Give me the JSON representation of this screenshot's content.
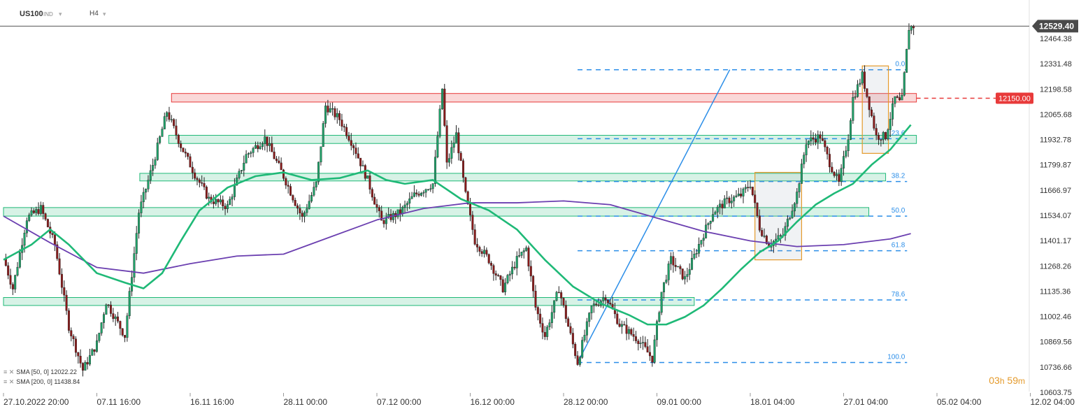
{
  "header": {
    "symbol": "US100",
    "market": "IND",
    "timeframe": "H4"
  },
  "timer": {
    "hours": "03",
    "h_unit": "h",
    "minutes": "59",
    "m_unit": "m"
  },
  "legend": [
    {
      "label": "SMA  [50, 0]  12022.22",
      "color": "#1fb977"
    },
    {
      "label": "SMA  [200, 0]  11438.84",
      "color": "#6b3fb0"
    }
  ],
  "colors": {
    "up": "#1fa36a",
    "down": "#8a1a1a",
    "sma50": "#1fb977",
    "sma200": "#6b3fb0",
    "fib": "#2b8ee8",
    "resistance": "#e83a3a",
    "zone": "#1fb977",
    "box": "#e49a2b"
  },
  "chart_data": {
    "type": "candlestick",
    "instrument": "US100",
    "timeframe": "H4",
    "y_ticks": [
      12464.38,
      12331.48,
      12198.58,
      12065.68,
      11932.78,
      11799.87,
      11666.97,
      11534.07,
      11401.17,
      11268.26,
      11135.36,
      11002.46,
      10869.56,
      10736.66,
      10603.75
    ],
    "x_ticks": [
      "27.10.2022  20:00",
      "07.11  16:00",
      "16.11  16:00",
      "28.11  00:00",
      "07.12  00:00",
      "16.12  00:00",
      "28.12  00:00",
      "09.01  00:00",
      "18.01  04:00",
      "27.01  04:00",
      "05.02  04:00",
      "12.02  04:00"
    ],
    "x_range": [
      0,
      11
    ],
    "last_price": "12529.40",
    "last_price_value": 12529.4,
    "ylim": [
      10603.75,
      12560
    ],
    "price_path": [
      [
        0.0,
        11310
      ],
      [
        0.1,
        11150
      ],
      [
        0.25,
        11520
      ],
      [
        0.4,
        11570
      ],
      [
        0.55,
        11380
      ],
      [
        0.7,
        10950
      ],
      [
        0.85,
        10720
      ],
      [
        1.0,
        10860
      ],
      [
        1.1,
        11080
      ],
      [
        1.3,
        10900
      ],
      [
        1.45,
        11550
      ],
      [
        1.6,
        11800
      ],
      [
        1.75,
        12080
      ],
      [
        1.9,
        11900
      ],
      [
        2.05,
        11750
      ],
      [
        2.2,
        11620
      ],
      [
        2.4,
        11580
      ],
      [
        2.6,
        11850
      ],
      [
        2.8,
        11940
      ],
      [
        3.0,
        11740
      ],
      [
        3.2,
        11520
      ],
      [
        3.35,
        11700
      ],
      [
        3.45,
        12110
      ],
      [
        3.6,
        12040
      ],
      [
        3.75,
        11900
      ],
      [
        3.9,
        11720
      ],
      [
        4.05,
        11500
      ],
      [
        4.25,
        11550
      ],
      [
        4.4,
        11640
      ],
      [
        4.6,
        11700
      ],
      [
        4.7,
        12200
      ],
      [
        4.75,
        11800
      ],
      [
        4.85,
        11960
      ],
      [
        4.95,
        11640
      ],
      [
        5.05,
        11400
      ],
      [
        5.2,
        11300
      ],
      [
        5.35,
        11150
      ],
      [
        5.5,
        11300
      ],
      [
        5.6,
        11360
      ],
      [
        5.7,
        11050
      ],
      [
        5.8,
        10900
      ],
      [
        5.95,
        11150
      ],
      [
        6.05,
        10950
      ],
      [
        6.15,
        10760
      ],
      [
        6.3,
        11050
      ],
      [
        6.45,
        11110
      ],
      [
        6.6,
        10960
      ],
      [
        6.8,
        10880
      ],
      [
        6.95,
        10780
      ],
      [
        7.05,
        11130
      ],
      [
        7.15,
        11300
      ],
      [
        7.3,
        11200
      ],
      [
        7.45,
        11380
      ],
      [
        7.6,
        11550
      ],
      [
        7.75,
        11610
      ],
      [
        7.9,
        11640
      ],
      [
        8.0,
        11700
      ],
      [
        8.1,
        11470
      ],
      [
        8.2,
        11380
      ],
      [
        8.35,
        11430
      ],
      [
        8.5,
        11650
      ],
      [
        8.6,
        11920
      ],
      [
        8.75,
        11950
      ],
      [
        8.85,
        11810
      ],
      [
        8.95,
        11700
      ],
      [
        9.05,
        11950
      ],
      [
        9.1,
        12150
      ],
      [
        9.2,
        12270
      ],
      [
        9.35,
        11950
      ],
      [
        9.45,
        11950
      ],
      [
        9.55,
        12150
      ],
      [
        9.62,
        12120
      ],
      [
        9.7,
        12520
      ],
      [
        9.75,
        12530
      ]
    ],
    "sma50": [
      [
        0.0,
        11300
      ],
      [
        0.3,
        11380
      ],
      [
        0.5,
        11460
      ],
      [
        0.7,
        11380
      ],
      [
        1.0,
        11230
      ],
      [
        1.3,
        11180
      ],
      [
        1.5,
        11150
      ],
      [
        1.7,
        11230
      ],
      [
        1.9,
        11400
      ],
      [
        2.1,
        11560
      ],
      [
        2.4,
        11680
      ],
      [
        2.7,
        11740
      ],
      [
        3.0,
        11760
      ],
      [
        3.3,
        11720
      ],
      [
        3.6,
        11730
      ],
      [
        3.9,
        11770
      ],
      [
        4.1,
        11720
      ],
      [
        4.3,
        11700
      ],
      [
        4.6,
        11720
      ],
      [
        4.9,
        11620
      ],
      [
        5.2,
        11560
      ],
      [
        5.5,
        11460
      ],
      [
        5.8,
        11300
      ],
      [
        6.1,
        11160
      ],
      [
        6.4,
        11070
      ],
      [
        6.7,
        11010
      ],
      [
        6.9,
        10960
      ],
      [
        7.1,
        10960
      ],
      [
        7.3,
        11000
      ],
      [
        7.5,
        11060
      ],
      [
        7.7,
        11150
      ],
      [
        7.9,
        11250
      ],
      [
        8.1,
        11340
      ],
      [
        8.3,
        11400
      ],
      [
        8.5,
        11500
      ],
      [
        8.7,
        11590
      ],
      [
        8.9,
        11650
      ],
      [
        9.1,
        11700
      ],
      [
        9.3,
        11800
      ],
      [
        9.5,
        11880
      ],
      [
        9.72,
        12010
      ]
    ],
    "sma200": [
      [
        0.0,
        11530
      ],
      [
        0.5,
        11390
      ],
      [
        1.0,
        11260
      ],
      [
        1.5,
        11230
      ],
      [
        2.0,
        11280
      ],
      [
        2.5,
        11320
      ],
      [
        3.0,
        11330
      ],
      [
        3.5,
        11420
      ],
      [
        4.0,
        11510
      ],
      [
        4.5,
        11570
      ],
      [
        5.0,
        11600
      ],
      [
        5.5,
        11600
      ],
      [
        6.0,
        11610
      ],
      [
        6.5,
        11590
      ],
      [
        7.0,
        11520
      ],
      [
        7.5,
        11450
      ],
      [
        8.0,
        11400
      ],
      [
        8.5,
        11370
      ],
      [
        9.0,
        11380
      ],
      [
        9.5,
        11410
      ],
      [
        9.72,
        11438
      ]
    ],
    "fibonacci": {
      "x_start": 6.15,
      "x_end": 9.68,
      "levels": [
        {
          "label": "0.0",
          "price": 12300
        },
        {
          "label": "23.6",
          "price": 11937
        },
        {
          "label": "38.2",
          "price": 11712
        },
        {
          "label": "50.0",
          "price": 11530
        },
        {
          "label": "61.8",
          "price": 11348
        },
        {
          "label": "78.6",
          "price": 11089
        },
        {
          "label": "100.0",
          "price": 10760
        }
      ]
    },
    "trend_line": {
      "from": [
        6.15,
        10760
      ],
      "to": [
        7.78,
        12300
      ]
    },
    "resistance": {
      "label": "12150.00",
      "price": 12150,
      "x_start": 1.8,
      "x_end": 9.78,
      "band": [
        12130,
        12175
      ]
    },
    "support_zones": [
      {
        "x_start": 1.77,
        "x_end": 9.78,
        "band": [
          11912,
          11955
        ]
      },
      {
        "x_start": 1.46,
        "x_end": 9.45,
        "band": [
          11715,
          11755
        ]
      },
      {
        "x_start": 0.0,
        "x_end": 9.27,
        "band": [
          11530,
          11575
        ]
      },
      {
        "x_start": 0.0,
        "x_end": 7.4,
        "band": [
          11060,
          11102
        ]
      }
    ],
    "boxes": [
      {
        "x_start": 8.05,
        "x_end": 8.55,
        "band": [
          11300,
          11760
        ]
      },
      {
        "x_start": 9.2,
        "x_end": 9.48,
        "band": [
          11860,
          12320
        ]
      }
    ]
  }
}
